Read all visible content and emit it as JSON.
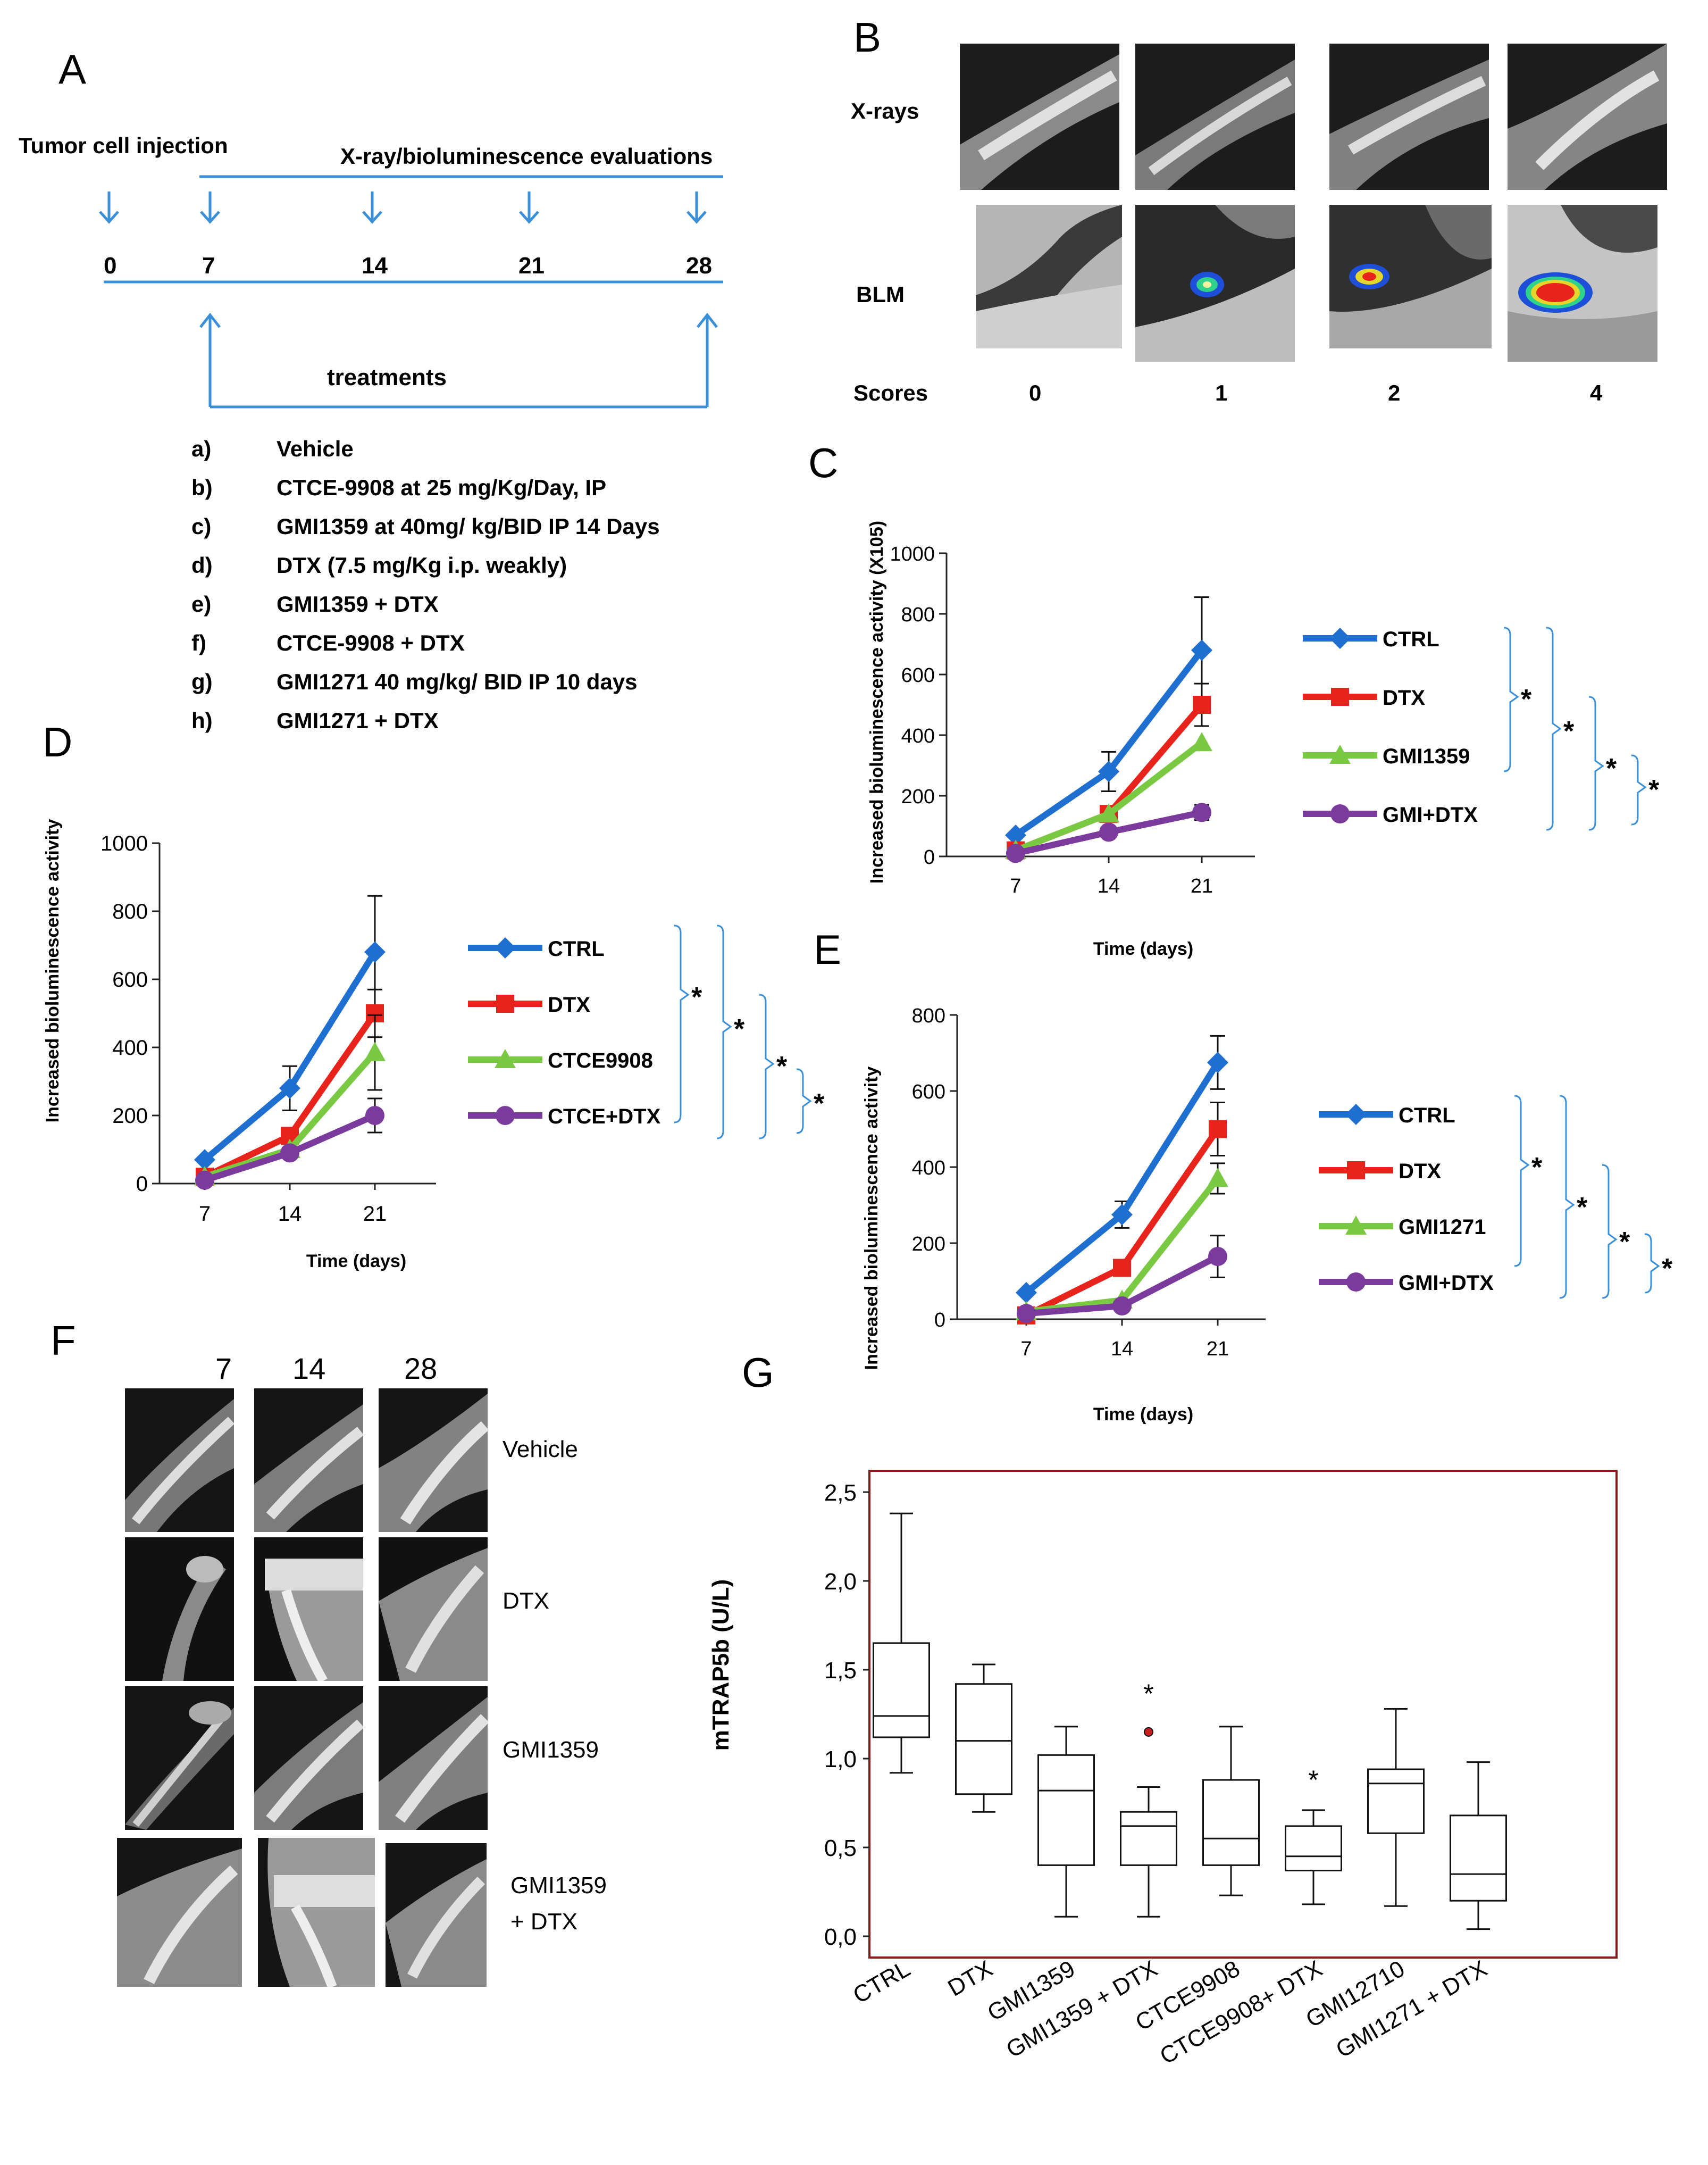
{
  "panels": {
    "A": "A",
    "B": "B",
    "C": "C",
    "D": "D",
    "E": "E",
    "F": "F",
    "G": "G"
  },
  "timeline": {
    "injection_label": "Tumor cell injection",
    "eval_label": "X-ray/bioluminescence  evaluations",
    "days": [
      "0",
      "7",
      "14",
      "21",
      "28"
    ],
    "treatments_label": "treatments"
  },
  "treatments": [
    {
      "key": "a)",
      "text": "Vehicle"
    },
    {
      "key": "b)",
      "text": "CTCE-9908 at 25 mg/Kg/Day, IP"
    },
    {
      "key": "c)",
      "text": "GMI1359 at 40mg/ kg/BID IP 14 Days"
    },
    {
      "key": "d)",
      "text": "DTX (7.5 mg/Kg i.p. weakly)"
    },
    {
      "key": "e)",
      "text": "GMI1359  + DTX"
    },
    {
      "key": "f)",
      "text": "CTCE-9908 + DTX"
    },
    {
      "key": "g)",
      "text": "GMI1271 40 mg/kg/ BID IP 10 days"
    },
    {
      "key": "h)",
      "text": "GMI1271 + DTX"
    }
  ],
  "panelB": {
    "xray_label": "X-rays",
    "blm_label": "BLM",
    "scores_label": "Scores",
    "scores": [
      "0",
      "1",
      "2",
      "4"
    ]
  },
  "panelF": {
    "days": [
      "7",
      "14",
      "28"
    ],
    "rows": [
      "Vehicle",
      "DTX",
      "GMI1359",
      "GMI1359",
      "+ DTX"
    ]
  },
  "colors": {
    "CTRL": "#1f6fd1",
    "DTX": "#e8231c",
    "drug": "#7ac943",
    "combo": "#7a3b9c",
    "boxborder": "#8b1a1a"
  },
  "chart_data": [
    {
      "id": "C",
      "type": "line",
      "title": "",
      "ylabel": "Increased bioluminescence activity (X105)",
      "xlabel": "Time (days)",
      "x": [
        7,
        14,
        21
      ],
      "ylim": [
        0,
        1000
      ],
      "yticks": [
        "0",
        "200",
        "400",
        "600",
        "800",
        "1000"
      ],
      "xticks": [
        "7",
        "14",
        "21"
      ],
      "series": [
        {
          "name": "CTRL",
          "values": [
            70,
            280,
            680
          ],
          "err": [
            0,
            65,
            175
          ],
          "color": "#1f6fd1",
          "marker": "diamond"
        },
        {
          "name": "DTX",
          "values": [
            20,
            140,
            500
          ],
          "err": [
            0,
            0,
            70
          ],
          "color": "#e8231c",
          "marker": "square"
        },
        {
          "name": "GMI1359",
          "values": [
            20,
            140,
            375
          ],
          "err": [
            0,
            0,
            0
          ],
          "color": "#7ac943",
          "marker": "triangle"
        },
        {
          "name": "GMI+DTX",
          "values": [
            10,
            80,
            145
          ],
          "err": [
            0,
            0,
            25
          ],
          "color": "#7a3b9c",
          "marker": "circle"
        }
      ],
      "significance": [
        "*",
        "*",
        "*",
        "*"
      ]
    },
    {
      "id": "D",
      "type": "line",
      "title": "",
      "ylabel": "Increased bioluminescence activity",
      "xlabel": "Time (days)",
      "x": [
        7,
        14,
        21
      ],
      "ylim": [
        0,
        1000
      ],
      "yticks": [
        "0",
        "200",
        "400",
        "600",
        "800",
        "1000"
      ],
      "xticks": [
        "7",
        "14",
        "21"
      ],
      "series": [
        {
          "name": "CTRL",
          "values": [
            70,
            280,
            680
          ],
          "err": [
            0,
            65,
            165
          ],
          "color": "#1f6fd1",
          "marker": "diamond"
        },
        {
          "name": "DTX",
          "values": [
            20,
            140,
            500
          ],
          "err": [
            0,
            0,
            70
          ],
          "color": "#e8231c",
          "marker": "square"
        },
        {
          "name": "CTCE9908",
          "values": [
            20,
            100,
            385
          ],
          "err": [
            0,
            0,
            110
          ],
          "color": "#7ac943",
          "marker": "triangle"
        },
        {
          "name": "CTCE+DTX",
          "values": [
            10,
            90,
            200
          ],
          "err": [
            0,
            0,
            50
          ],
          "color": "#7a3b9c",
          "marker": "circle"
        }
      ],
      "significance": [
        "*",
        "*",
        "*",
        "*"
      ]
    },
    {
      "id": "E",
      "type": "line",
      "title": "",
      "ylabel": "Increased bioluminescence activity",
      "xlabel": "Time (days)",
      "x": [
        7,
        14,
        21
      ],
      "ylim": [
        0,
        800
      ],
      "yticks": [
        "0",
        "200",
        "400",
        "600",
        "800"
      ],
      "xticks": [
        "7",
        "14",
        "21"
      ],
      "series": [
        {
          "name": "CTRL",
          "values": [
            70,
            275,
            675
          ],
          "err": [
            0,
            35,
            70
          ],
          "color": "#1f6fd1",
          "marker": "diamond"
        },
        {
          "name": "DTX",
          "values": [
            10,
            135,
            500
          ],
          "err": [
            0,
            0,
            70
          ],
          "color": "#e8231c",
          "marker": "square"
        },
        {
          "name": "GMI1271",
          "values": [
            20,
            50,
            370
          ],
          "err": [
            0,
            0,
            40
          ],
          "color": "#7ac943",
          "marker": "triangle"
        },
        {
          "name": "GMI+DTX",
          "values": [
            15,
            35,
            165
          ],
          "err": [
            0,
            0,
            55
          ],
          "color": "#7a3b9c",
          "marker": "circle"
        }
      ],
      "significance": [
        "*",
        "*",
        "*",
        "*"
      ]
    },
    {
      "id": "G",
      "type": "box",
      "title": "",
      "ylabel": "mTRAP5b (U/L)",
      "xlabel": "",
      "ylim": [
        0,
        2.5
      ],
      "yticks": [
        "0,0",
        "0,5",
        "1,0",
        "1,5",
        "2,0",
        "2,5"
      ],
      "categories": [
        "CTRL",
        "DTX",
        "GMI1359",
        "GMI1359 + DTX",
        "CTCE9908",
        "CTCE9908+ DTX",
        "GMI12710",
        "GMI1271 + DTX"
      ],
      "boxes": [
        {
          "min": 0.92,
          "q1": 1.12,
          "median": 1.24,
          "q3": 1.65,
          "max": 2.38,
          "star": false,
          "outlier": null
        },
        {
          "min": 0.7,
          "q1": 0.8,
          "median": 1.1,
          "q3": 1.42,
          "max": 1.53,
          "star": false,
          "outlier": null
        },
        {
          "min": 0.11,
          "q1": 0.4,
          "median": 0.82,
          "q3": 1.02,
          "max": 1.18,
          "star": false,
          "outlier": null
        },
        {
          "min": 0.11,
          "q1": 0.4,
          "median": 0.62,
          "q3": 0.7,
          "max": 0.84,
          "star": true,
          "outlier": 1.15
        },
        {
          "min": 0.23,
          "q1": 0.4,
          "median": 0.55,
          "q3": 0.88,
          "max": 1.18,
          "star": false,
          "outlier": null
        },
        {
          "min": 0.18,
          "q1": 0.37,
          "median": 0.45,
          "q3": 0.62,
          "max": 0.71,
          "star": true,
          "outlier": null
        },
        {
          "min": 0.17,
          "q1": 0.58,
          "median": 0.86,
          "q3": 0.94,
          "max": 1.28,
          "star": false,
          "outlier": null
        },
        {
          "min": 0.04,
          "q1": 0.2,
          "median": 0.35,
          "q3": 0.68,
          "max": 0.98,
          "star": false,
          "outlier": null
        }
      ]
    }
  ]
}
